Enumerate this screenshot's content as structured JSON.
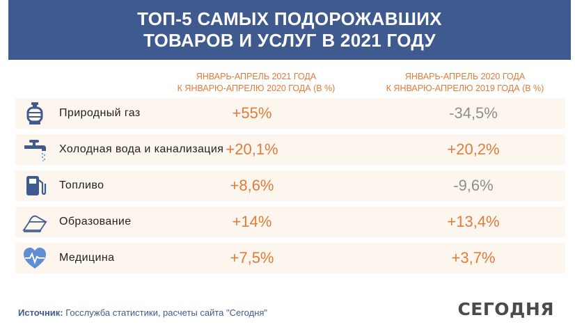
{
  "header": {
    "title_line1": "ТОП-5 САМЫХ ПОДОРОЖАВШИХ",
    "title_line2": "ТОВАРОВ И УСЛУГ В 2021 ГОДУ"
  },
  "columns": [
    {
      "line1": "ЯНВАРЬ-АПРЕЛЬ 2021 ГОДА",
      "line2": "К ЯНВАРЮ-АПРЕЛЮ 2020 ГОДА (В %)"
    },
    {
      "line1": "ЯНВАРЬ-АПРЕЛЬ 2020 ГОДА",
      "line2": "К ЯНВАРЮ-АПРЕЛЮ 2019 ГОДА (В %)"
    }
  ],
  "chart_data": {
    "type": "table",
    "categories": [
      "Природный газ",
      "Холодная вода и канализация",
      "Топливо",
      "Образование",
      "Медицина"
    ],
    "series": [
      {
        "values": [
          55,
          20.1,
          8.6,
          14,
          7.5
        ],
        "display": [
          "+55%",
          "+20,1%",
          "+8,6%",
          "+14%",
          "+7,5%"
        ]
      },
      {
        "values": [
          -34.5,
          20.2,
          -9.6,
          13.4,
          3.7
        ],
        "display": [
          "-34,5%",
          "+20,2%",
          "-9,6%",
          "+13,4%",
          "+3,7%"
        ]
      }
    ],
    "icons": [
      "gas-cylinder-icon",
      "water-tap-icon",
      "fuel-pump-icon",
      "book-icon",
      "heart-pulse-icon"
    ],
    "colors": {
      "positive": "#e07b39",
      "negative": "#8e8e8e",
      "header": "#3f5a8f"
    }
  },
  "footer": {
    "source_label": "Источник:",
    "source_text": " Госслужба статистики, расчеты сайта \"Сегодня\""
  },
  "brand": "СЕГОДНЯ"
}
